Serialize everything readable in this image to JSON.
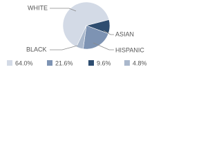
{
  "chart_data": {
    "type": "pie",
    "categories": [
      "WHITE",
      "ASIAN",
      "HISPANIC",
      "BLACK"
    ],
    "values": [
      64.0,
      9.6,
      21.6,
      4.8
    ],
    "value_labels": [
      "64.0%",
      "9.6%",
      "21.6%",
      "4.8%"
    ],
    "colors": [
      "#d3dae6",
      "#2e4d70",
      "#7d93b3",
      "#aab8cc"
    ]
  }
}
